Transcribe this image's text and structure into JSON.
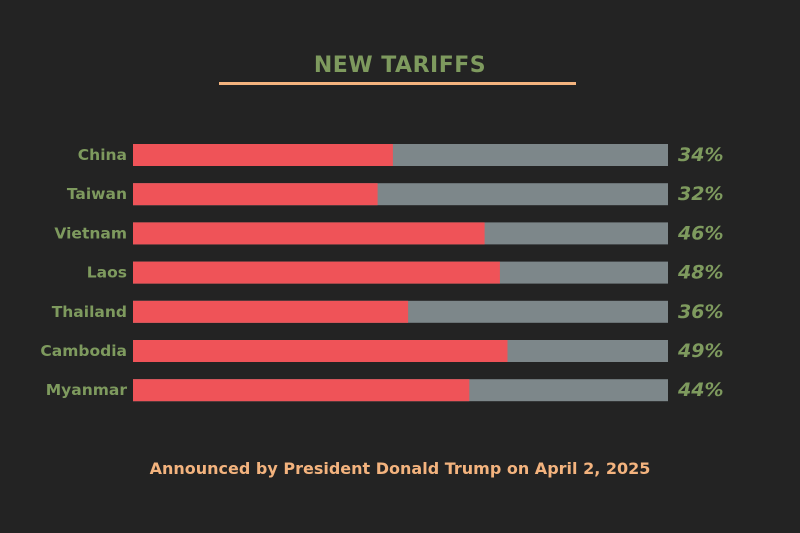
{
  "colors": {
    "background": "#232323",
    "title": "#7e9a5e",
    "rule": "#f3b37e",
    "bar_fill": "#ef5358",
    "bar_track": "#7d878a",
    "label": "#7e9a5e",
    "value": "#7e9a5e",
    "footnote": "#f3b37e"
  },
  "chart_data": {
    "type": "bar",
    "orientation": "horizontal",
    "title": "NEW TARIFFS",
    "categories": [
      "China",
      "Taiwan",
      "Vietnam",
      "Laos",
      "Thailand",
      "Cambodia",
      "Myanmar"
    ],
    "values": [
      34,
      32,
      46,
      48,
      36,
      49,
      44
    ],
    "value_labels": [
      "34%",
      "32%",
      "46%",
      "48%",
      "36%",
      "49%",
      "44%"
    ],
    "xlim": [
      0,
      100
    ],
    "grid": false,
    "legend": "none"
  },
  "footnote": "Announced by President Donald Trump on April 2, 2025"
}
